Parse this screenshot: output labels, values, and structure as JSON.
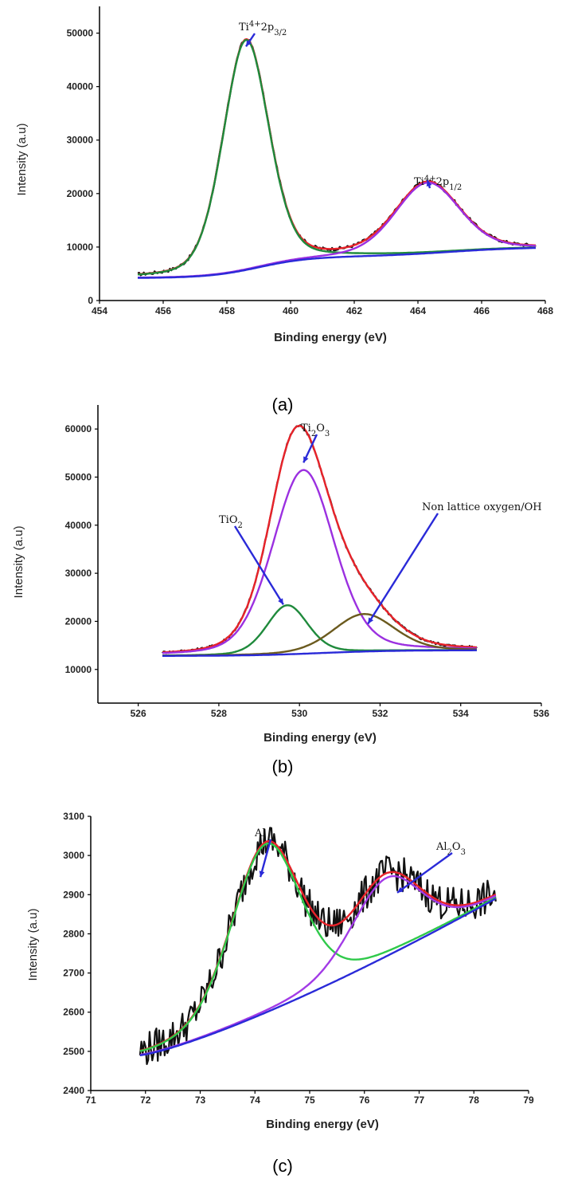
{
  "chart_data": [
    {
      "type": "line",
      "caption": "(a)",
      "xlabel": "Binding energy (eV)",
      "ylabel": "Intensity (a.u)",
      "xlim": [
        454,
        468
      ],
      "ylim": [
        0,
        55000
      ],
      "xticks": [
        454,
        456,
        458,
        460,
        462,
        464,
        466,
        468
      ],
      "yticks": [
        0,
        10000,
        20000,
        30000,
        40000,
        50000
      ],
      "x_range": [
        455.2,
        467.7
      ],
      "background": {
        "a": 4200,
        "b": 10300,
        "steps": [
          {
            "center": 459,
            "width": 0.8,
            "h": 4000
          },
          {
            "center": 465,
            "width": 1.2,
            "h": 1800
          }
        ]
      },
      "series": [
        {
          "name": "raw data",
          "color": "#111111",
          "noise": 300,
          "peaks": [
            {
              "center": 458.6,
              "height": 43000,
              "width": 0.85
            },
            {
              "center": 464.3,
              "height": 13200,
              "width": 1.2
            }
          ]
        },
        {
          "name": "envelope fit",
          "color": "#e8232a",
          "peaks": [
            {
              "center": 458.6,
              "height": 43000,
              "width": 0.85
            },
            {
              "center": 464.3,
              "height": 13200,
              "width": 1.2
            }
          ]
        },
        {
          "name": "Ti 2p3/2 component",
          "color": "#1f8a3c",
          "peaks": [
            {
              "center": 458.6,
              "height": 43000,
              "width": 0.85
            }
          ]
        },
        {
          "name": "Ti 2p1/2 component",
          "color": "#9b30e0",
          "peaks": [
            {
              "center": 464.3,
              "height": 13200,
              "width": 1.2
            }
          ]
        },
        {
          "name": "background",
          "color": "#2a2ad8",
          "peaks": []
        }
      ],
      "annotations": [
        {
          "label": "Ti",
          "sup": "4+",
          "rest": "2p",
          "sub": "3/2",
          "target": [
            458.6,
            47500
          ]
        },
        {
          "label": "Ti",
          "sup": "4+",
          "rest": "2p",
          "sub": "1/2",
          "target": [
            464.3,
            22500
          ]
        }
      ]
    },
    {
      "type": "line",
      "caption": "(b)",
      "xlabel": "Binding energy (eV)",
      "ylabel": "Intensity (a.u)",
      "xlim": [
        525,
        536
      ],
      "ylim": [
        3000,
        65000
      ],
      "xticks": [
        526,
        528,
        530,
        532,
        534,
        536
      ],
      "yticks": [
        10000,
        20000,
        30000,
        40000,
        50000,
        60000
      ],
      "x_range": [
        526.6,
        534.4
      ],
      "background": {
        "a": 12800,
        "b": 14300,
        "steps": [
          {
            "center": 530.5,
            "width": 0.9,
            "h": 1200
          }
        ]
      },
      "series": [
        {
          "name": "raw data",
          "color": "#111111",
          "noise": 250,
          "peaks": [
            {
              "center": 529.7,
              "height": 10200,
              "width": 0.6
            },
            {
              "center": 530.1,
              "height": 38200,
              "width": 0.9
            },
            {
              "center": 531.6,
              "height": 7800,
              "width": 0.9
            }
          ]
        },
        {
          "name": "envelope fit",
          "color": "#e8232a",
          "peaks": [
            {
              "center": 529.7,
              "height": 10200,
              "width": 0.6
            },
            {
              "center": 530.1,
              "height": 38200,
              "width": 0.9
            },
            {
              "center": 531.6,
              "height": 7800,
              "width": 0.9
            }
          ]
        },
        {
          "name": "Ti2O3 component",
          "color": "#9b30e0",
          "peaks": [
            {
              "center": 530.1,
              "height": 38200,
              "width": 0.9
            }
          ]
        },
        {
          "name": "TiO2 component",
          "color": "#1f8a3c",
          "peaks": [
            {
              "center": 529.7,
              "height": 10200,
              "width": 0.6
            }
          ]
        },
        {
          "name": "OH component",
          "color": "#6b5a1e",
          "peaks": [
            {
              "center": 531.6,
              "height": 7800,
              "width": 0.9
            }
          ]
        },
        {
          "name": "background",
          "color": "#2a2ad8",
          "peaks": []
        }
      ],
      "annotations": [
        {
          "label": "Ti",
          "sub": "2",
          "rest": "O",
          "sub2": "3",
          "target": [
            530.1,
            53000
          ]
        },
        {
          "label": "TiO",
          "sub": "2",
          "target": [
            529.6,
            23500
          ]
        },
        {
          "label": "Non lattice oxygen/OH",
          "target": [
            531.7,
            19500
          ]
        }
      ]
    },
    {
      "type": "line",
      "caption": "(c)",
      "xlabel": "Binding energy (eV)",
      "ylabel": "Intensity (a.u)",
      "xlim": [
        71,
        79
      ],
      "ylim": [
        2400,
        3100
      ],
      "xticks": [
        71,
        72,
        73,
        74,
        75,
        76,
        77,
        78,
        79
      ],
      "yticks": [
        2400,
        2500,
        2600,
        2700,
        2800,
        2900,
        3000,
        3100
      ],
      "x_range": [
        71.9,
        78.4
      ],
      "background": {
        "a": 2490,
        "b": 2890,
        "curve": 1.25,
        "steps": []
      },
      "series": [
        {
          "name": "raw data",
          "color": "#111111",
          "noise": 45,
          "peaks": [
            {
              "center": 74.2,
              "height": 430,
              "width": 0.75
            },
            {
              "center": 76.4,
              "height": 200,
              "width": 0.75
            }
          ]
        },
        {
          "name": "envelope fit",
          "color": "#e8232a",
          "peaks": [
            {
              "center": 74.2,
              "height": 430,
              "width": 0.75
            },
            {
              "center": 76.4,
              "height": 200,
              "width": 0.75
            }
          ]
        },
        {
          "name": "Al component",
          "color": "#2fc94a",
          "peaks": [
            {
              "center": 74.2,
              "height": 430,
              "width": 0.75
            }
          ]
        },
        {
          "name": "Al2O3 component",
          "color": "#a23be6",
          "peaks": [
            {
              "center": 76.4,
              "height": 200,
              "width": 0.75
            }
          ]
        },
        {
          "name": "background",
          "color": "#2a2ad8",
          "peaks": []
        }
      ],
      "annotations": [
        {
          "label": "Al",
          "target": [
            74.1,
            2945
          ]
        },
        {
          "label": "Al",
          "sub": "2",
          "rest": "O",
          "sub2": "3",
          "target": [
            76.6,
            2905
          ]
        }
      ]
    }
  ]
}
